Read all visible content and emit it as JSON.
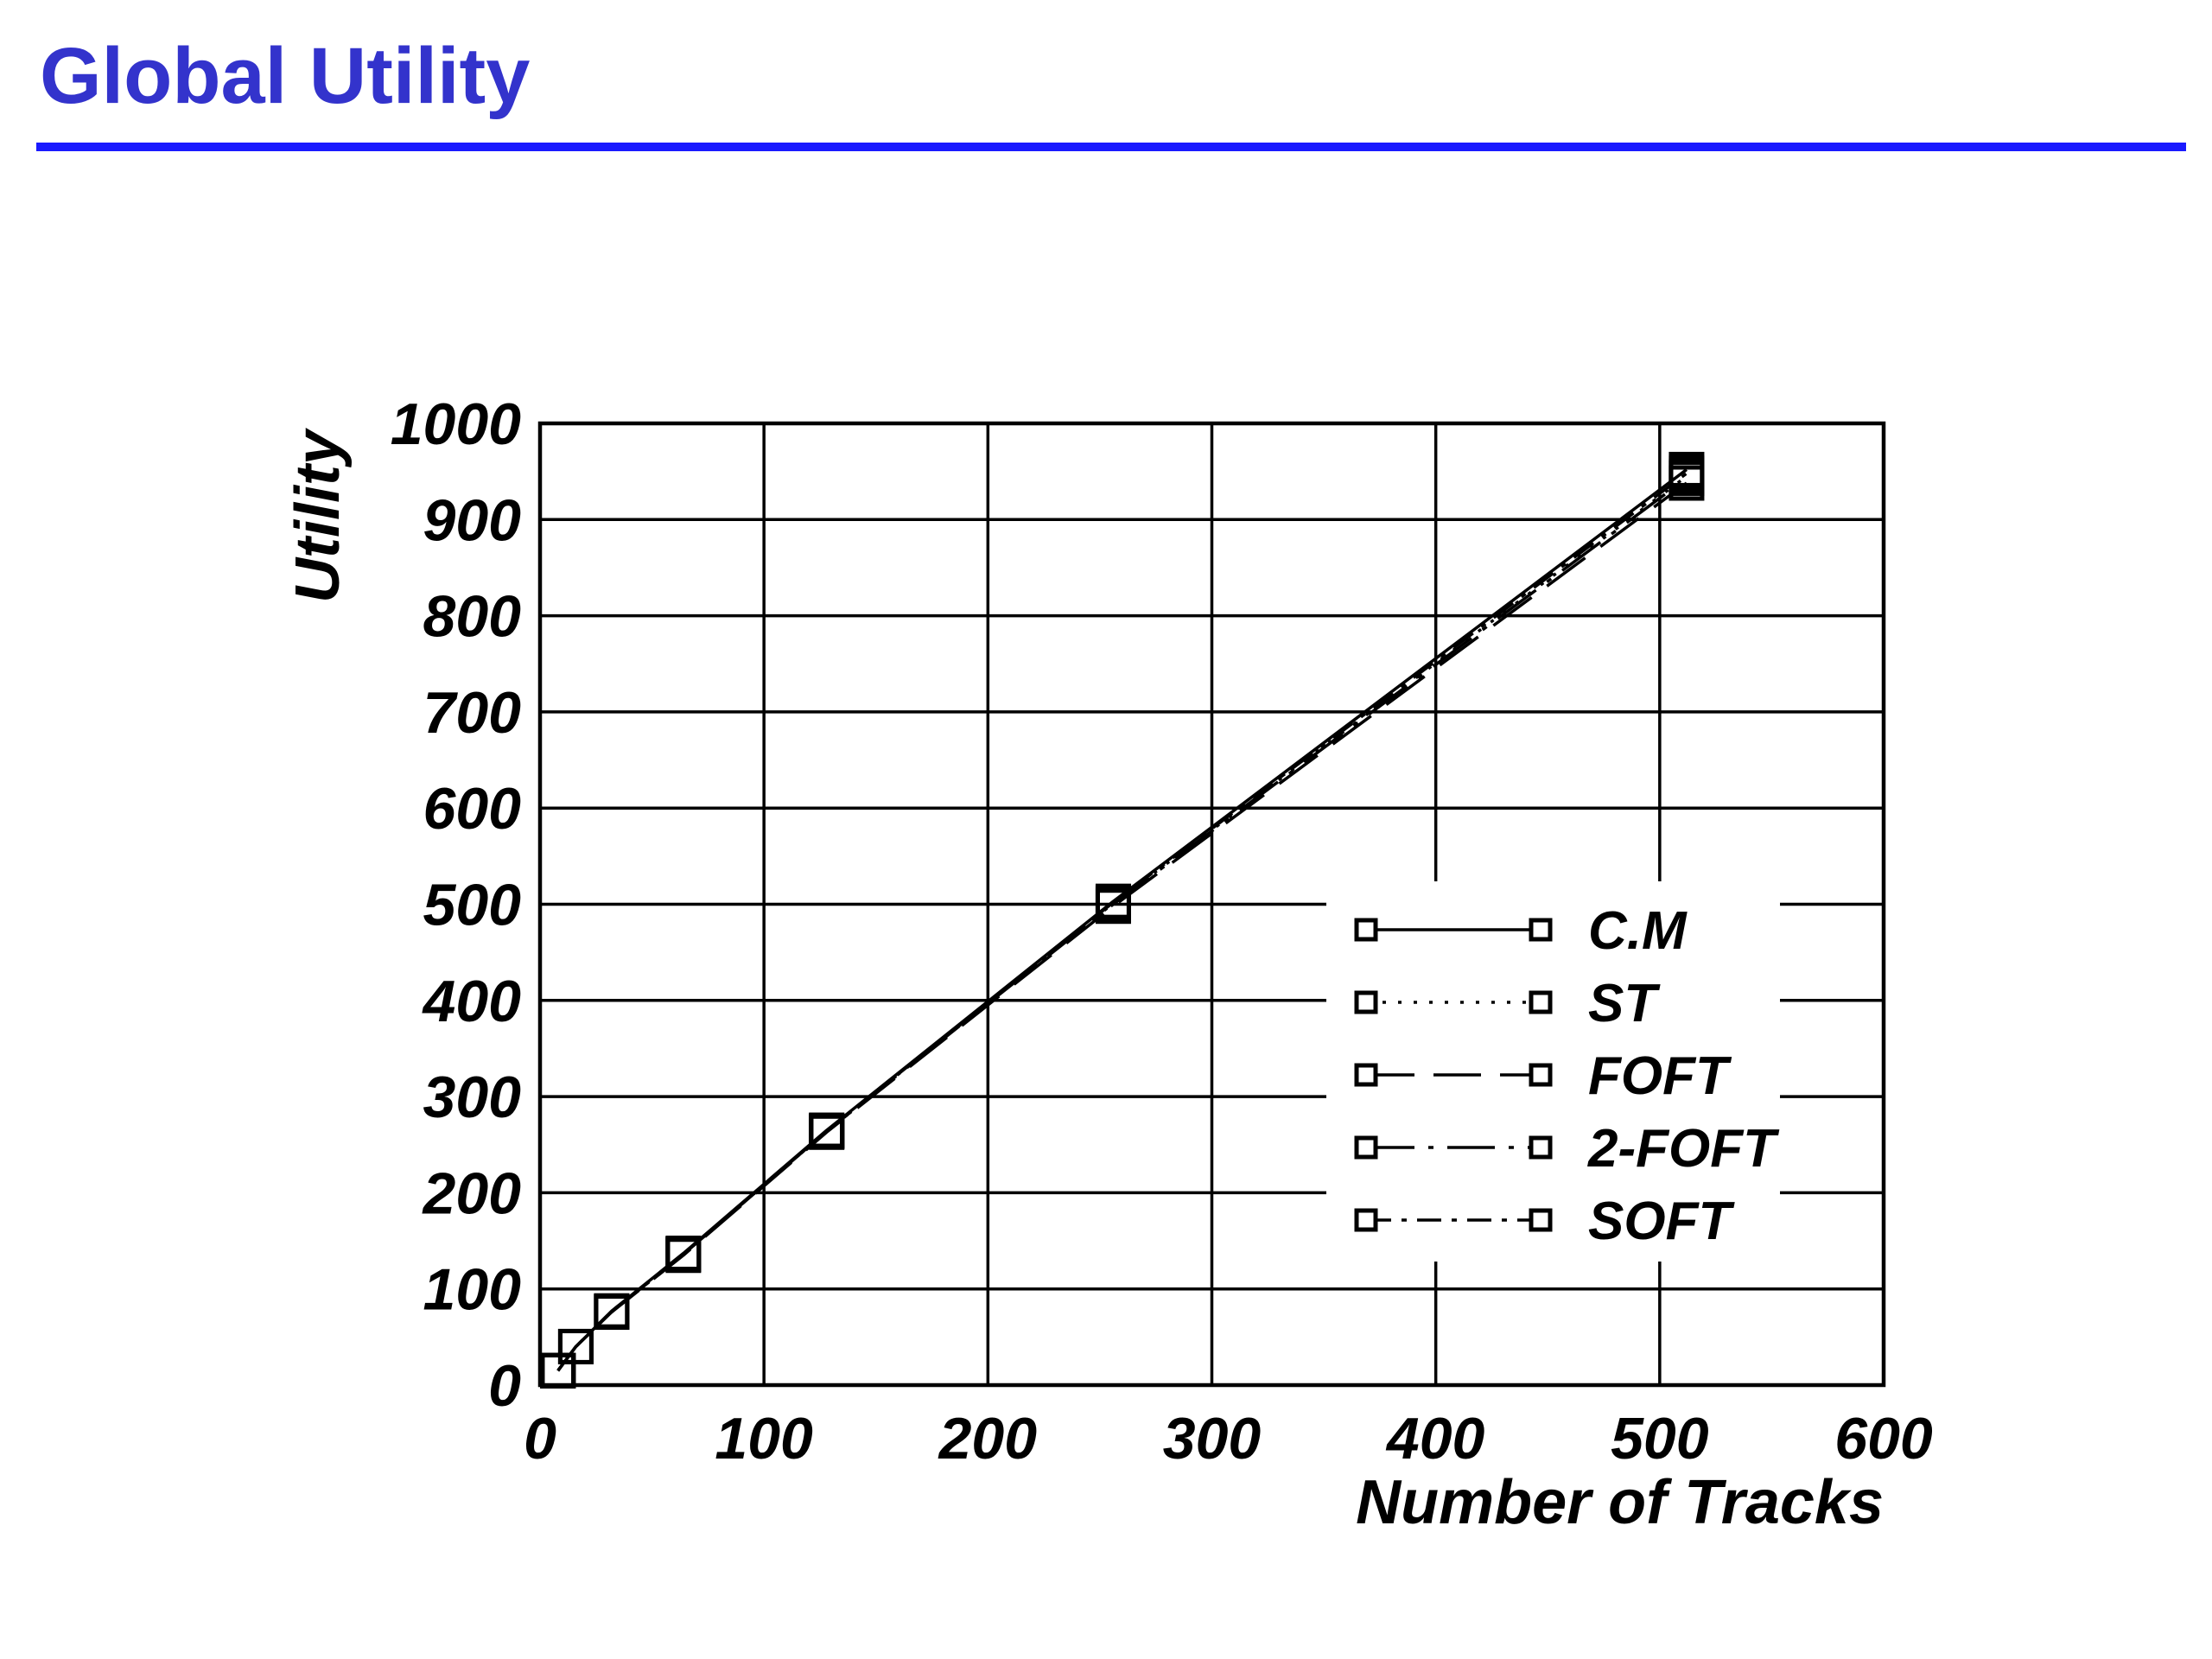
{
  "page": {
    "title": "Global Utility",
    "title_color": "#3333cc",
    "rule_color": "#1a1aff"
  },
  "chart_data": {
    "type": "line",
    "title": "",
    "xlabel": "Number of Tracks",
    "ylabel": "Utility",
    "xlim": [
      0,
      600
    ],
    "ylim": [
      0,
      1000
    ],
    "xticks": [
      "0",
      "100",
      "200",
      "300",
      "400",
      "500",
      "600"
    ],
    "yticks": [
      "0",
      "100",
      "200",
      "300",
      "400",
      "500",
      "600",
      "700",
      "800",
      "900",
      "1000"
    ],
    "grid": true,
    "legend_position": "lower-right",
    "x": [
      8,
      16,
      32,
      64,
      128,
      256,
      512
    ],
    "series": [
      {
        "name": "C.M",
        "style": "solid",
        "values": [
          15,
          40,
          77,
          137,
          265,
          503,
          952
        ]
      },
      {
        "name": "ST",
        "style": "dotted",
        "values": [
          15,
          40,
          76,
          136,
          264,
          501,
          945
        ]
      },
      {
        "name": "FOFT",
        "style": "long-dash",
        "values": [
          15,
          40,
          76,
          135,
          263,
          498,
          938
        ]
      },
      {
        "name": "2-FOFT",
        "style": "long-dash-dot",
        "values": [
          15,
          40,
          76,
          136,
          264,
          500,
          943
        ]
      },
      {
        "name": "SOFT",
        "style": "dash-dot",
        "values": [
          15,
          40,
          77,
          136,
          264,
          502,
          948
        ]
      }
    ]
  }
}
